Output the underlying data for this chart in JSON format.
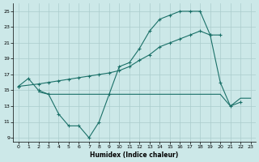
{
  "xlabel": "Humidex (Indice chaleur)",
  "bg_color": "#cce8e8",
  "grid_color": "#aacccc",
  "line_color": "#1a7068",
  "xlim": [
    -0.5,
    23.5
  ],
  "ylim": [
    8.5,
    26.0
  ],
  "xticks": [
    0,
    1,
    2,
    3,
    4,
    5,
    6,
    7,
    8,
    9,
    10,
    11,
    12,
    13,
    14,
    15,
    16,
    17,
    18,
    19,
    20,
    21,
    22,
    23
  ],
  "yticks": [
    9,
    11,
    13,
    15,
    17,
    19,
    21,
    23,
    25
  ],
  "line1_x": [
    0,
    1,
    2,
    3,
    4,
    5,
    6,
    7,
    8,
    9,
    10,
    11,
    12,
    13,
    14,
    15,
    16,
    17,
    18,
    19,
    20,
    21,
    22
  ],
  "line1_y": [
    15.5,
    16.5,
    15.0,
    14.5,
    12.0,
    10.5,
    10.5,
    9.0,
    11.0,
    14.5,
    18.0,
    18.5,
    20.3,
    22.5,
    24.0,
    24.5,
    25.0,
    25.0,
    25.0,
    22.0,
    16.0,
    13.0,
    13.5
  ],
  "line2_x": [
    0,
    2,
    3,
    4,
    5,
    6,
    7,
    8,
    9,
    10,
    11,
    12,
    13,
    14,
    15,
    16,
    17,
    18,
    19,
    20
  ],
  "line2_y": [
    15.5,
    15.8,
    16.0,
    16.2,
    16.4,
    16.6,
    16.8,
    17.0,
    17.2,
    17.5,
    18.0,
    18.8,
    19.5,
    20.5,
    21.0,
    21.5,
    22.0,
    22.5,
    22.0,
    22.0
  ],
  "line3_x": [
    2,
    3,
    4,
    5,
    6,
    7,
    8,
    9,
    10,
    11,
    12,
    13,
    14,
    15,
    16,
    17,
    18,
    19,
    20,
    21,
    22,
    23
  ],
  "line3_y": [
    14.8,
    14.5,
    14.5,
    14.5,
    14.5,
    14.5,
    14.5,
    14.5,
    14.5,
    14.5,
    14.5,
    14.5,
    14.5,
    14.5,
    14.5,
    14.5,
    14.5,
    14.5,
    14.5,
    13.0,
    14.0,
    14.0
  ]
}
